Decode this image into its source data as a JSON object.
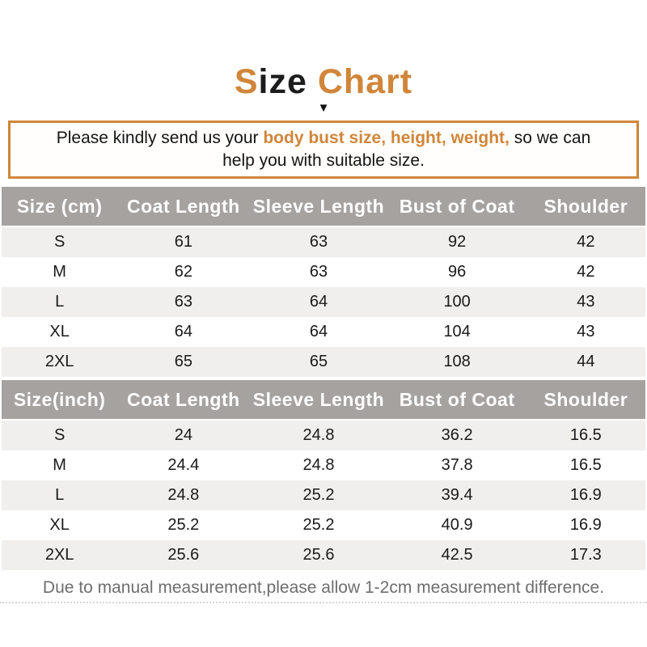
{
  "colors": {
    "accent": "#d0863a",
    "header_bg": "#a6a2a0",
    "row_alt": "#f0efee",
    "note_gray": "#6e6e6e"
  },
  "title": {
    "segments": [
      {
        "text": "S",
        "accent": true
      },
      {
        "text": "ize ",
        "accent": false
      },
      {
        "text": "Chart",
        "accent": true
      }
    ],
    "triangle_icon": "▼"
  },
  "notice": {
    "segments": [
      {
        "text": "Please kindly send us your ",
        "accent": false
      },
      {
        "text": "body bust size, height, weight,",
        "accent": true
      },
      {
        "text": " so we can\nhelp you with suitable size.",
        "accent": false
      }
    ]
  },
  "tables": [
    {
      "name": "cm",
      "col_widths_pct": [
        18,
        20.5,
        21.5,
        21.5,
        18.5
      ],
      "headers": [
        "Size (cm)",
        "Coat Length",
        "Sleeve Length",
        "Bust of Coat",
        "Shoulder"
      ],
      "rows": [
        [
          "S",
          "61",
          "63",
          "92",
          "42"
        ],
        [
          "M",
          "62",
          "63",
          "96",
          "42"
        ],
        [
          "L",
          "63",
          "64",
          "100",
          "43"
        ],
        [
          "XL",
          "64",
          "64",
          "104",
          "43"
        ],
        [
          "2XL",
          "65",
          "65",
          "108",
          "44"
        ]
      ]
    },
    {
      "name": "inch",
      "col_widths_pct": [
        18,
        20.5,
        21.5,
        21.5,
        18.5
      ],
      "headers": [
        "Size(inch)",
        "Coat Length",
        "Sleeve Length",
        "Bust of Coat",
        "Shoulder"
      ],
      "rows": [
        [
          "S",
          "24",
          "24.8",
          "36.2",
          "16.5"
        ],
        [
          "M",
          "24.4",
          "24.8",
          "37.8",
          "16.5"
        ],
        [
          "L",
          "24.8",
          "25.2",
          "39.4",
          "16.9"
        ],
        [
          "XL",
          "25.2",
          "25.2",
          "40.9",
          "16.9"
        ],
        [
          "2XL",
          "25.6",
          "25.6",
          "42.5",
          "17.3"
        ]
      ]
    }
  ],
  "footer": {
    "note": "Due to manual measurement,please allow 1-2cm measurement difference."
  }
}
